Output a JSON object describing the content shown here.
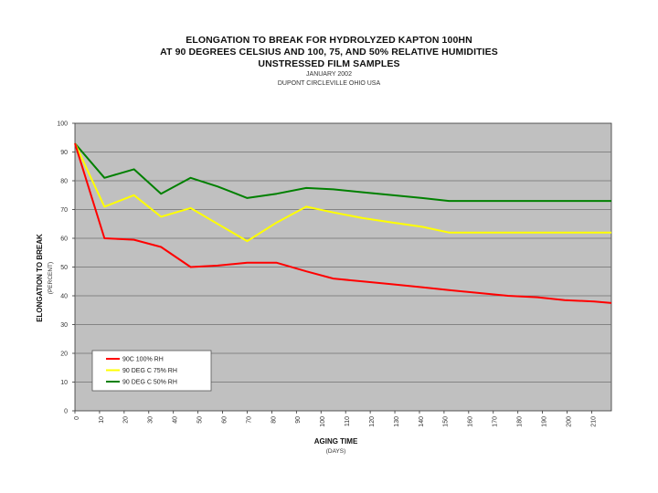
{
  "chart_data": {
    "type": "line",
    "title": "ELONGATION TO BREAK FOR HYDROLYZED KAPTON 100HN",
    "subtitle_lines": [
      "AT 90 DEGREES CELSIUS AND 100, 75, AND 50% RELATIVE HUMIDITIES",
      "UNSTRESSED FILM SAMPLES"
    ],
    "note_lines": [
      "JANUARY 2002",
      "DUPONT CIRCLEVILLE OHIO USA"
    ],
    "xlabel": "AGING TIME",
    "xlabel_sub": "(DAYS)",
    "ylabel": "ELONGATION TO BREAK",
    "ylabel_sub": "(PERCENT)",
    "xlim": [
      0,
      218
    ],
    "ylim": [
      0,
      100
    ],
    "x_ticks": [
      0,
      10,
      20,
      30,
      40,
      50,
      60,
      70,
      80,
      90,
      100,
      110,
      120,
      130,
      140,
      150,
      160,
      170,
      180,
      190,
      200,
      210
    ],
    "y_ticks": [
      0,
      10,
      20,
      30,
      40,
      50,
      60,
      70,
      80,
      90,
      100
    ],
    "grid": true,
    "legend_position": "lower-left",
    "series": [
      {
        "name": "90C 100% RH",
        "color": "#ff0000",
        "x": [
          0,
          12,
          24,
          35,
          47,
          58,
          70,
          82,
          94,
          105,
          117,
          129,
          141,
          152,
          164,
          176,
          188,
          199,
          211,
          218
        ],
        "values": [
          93,
          60,
          59.5,
          57,
          50,
          50.5,
          51.5,
          51.5,
          48.5,
          46,
          45,
          44,
          43,
          42,
          41,
          40,
          39.5,
          38.5,
          38,
          37.5
        ]
      },
      {
        "name": "90 DEG C 75% RH",
        "color": "#ffff00",
        "x": [
          0,
          12,
          24,
          35,
          47,
          58,
          70,
          82,
          94,
          105,
          117,
          129,
          141,
          152,
          164,
          176,
          188,
          199,
          211,
          218
        ],
        "values": [
          93,
          71,
          75,
          67.5,
          70.5,
          65,
          59,
          65.5,
          71,
          69,
          67,
          65.5,
          64,
          62,
          62,
          62,
          62,
          62,
          62,
          62
        ]
      },
      {
        "name": "90 DEG C 50% RH",
        "color": "#008000",
        "x": [
          0,
          12,
          24,
          35,
          47,
          58,
          70,
          82,
          94,
          105,
          117,
          129,
          141,
          152,
          164,
          176,
          188,
          199,
          211,
          218
        ],
        "values": [
          93,
          81,
          84,
          75.5,
          81,
          78,
          74,
          75.5,
          77.5,
          77,
          76,
          75,
          74,
          73,
          73,
          73,
          73,
          73,
          73,
          73
        ]
      }
    ]
  },
  "style": {
    "plot_bg": "#c0c0c0",
    "grid_color": "#707070",
    "axis_color": "#333333",
    "legend_bg": "#ffffff"
  }
}
